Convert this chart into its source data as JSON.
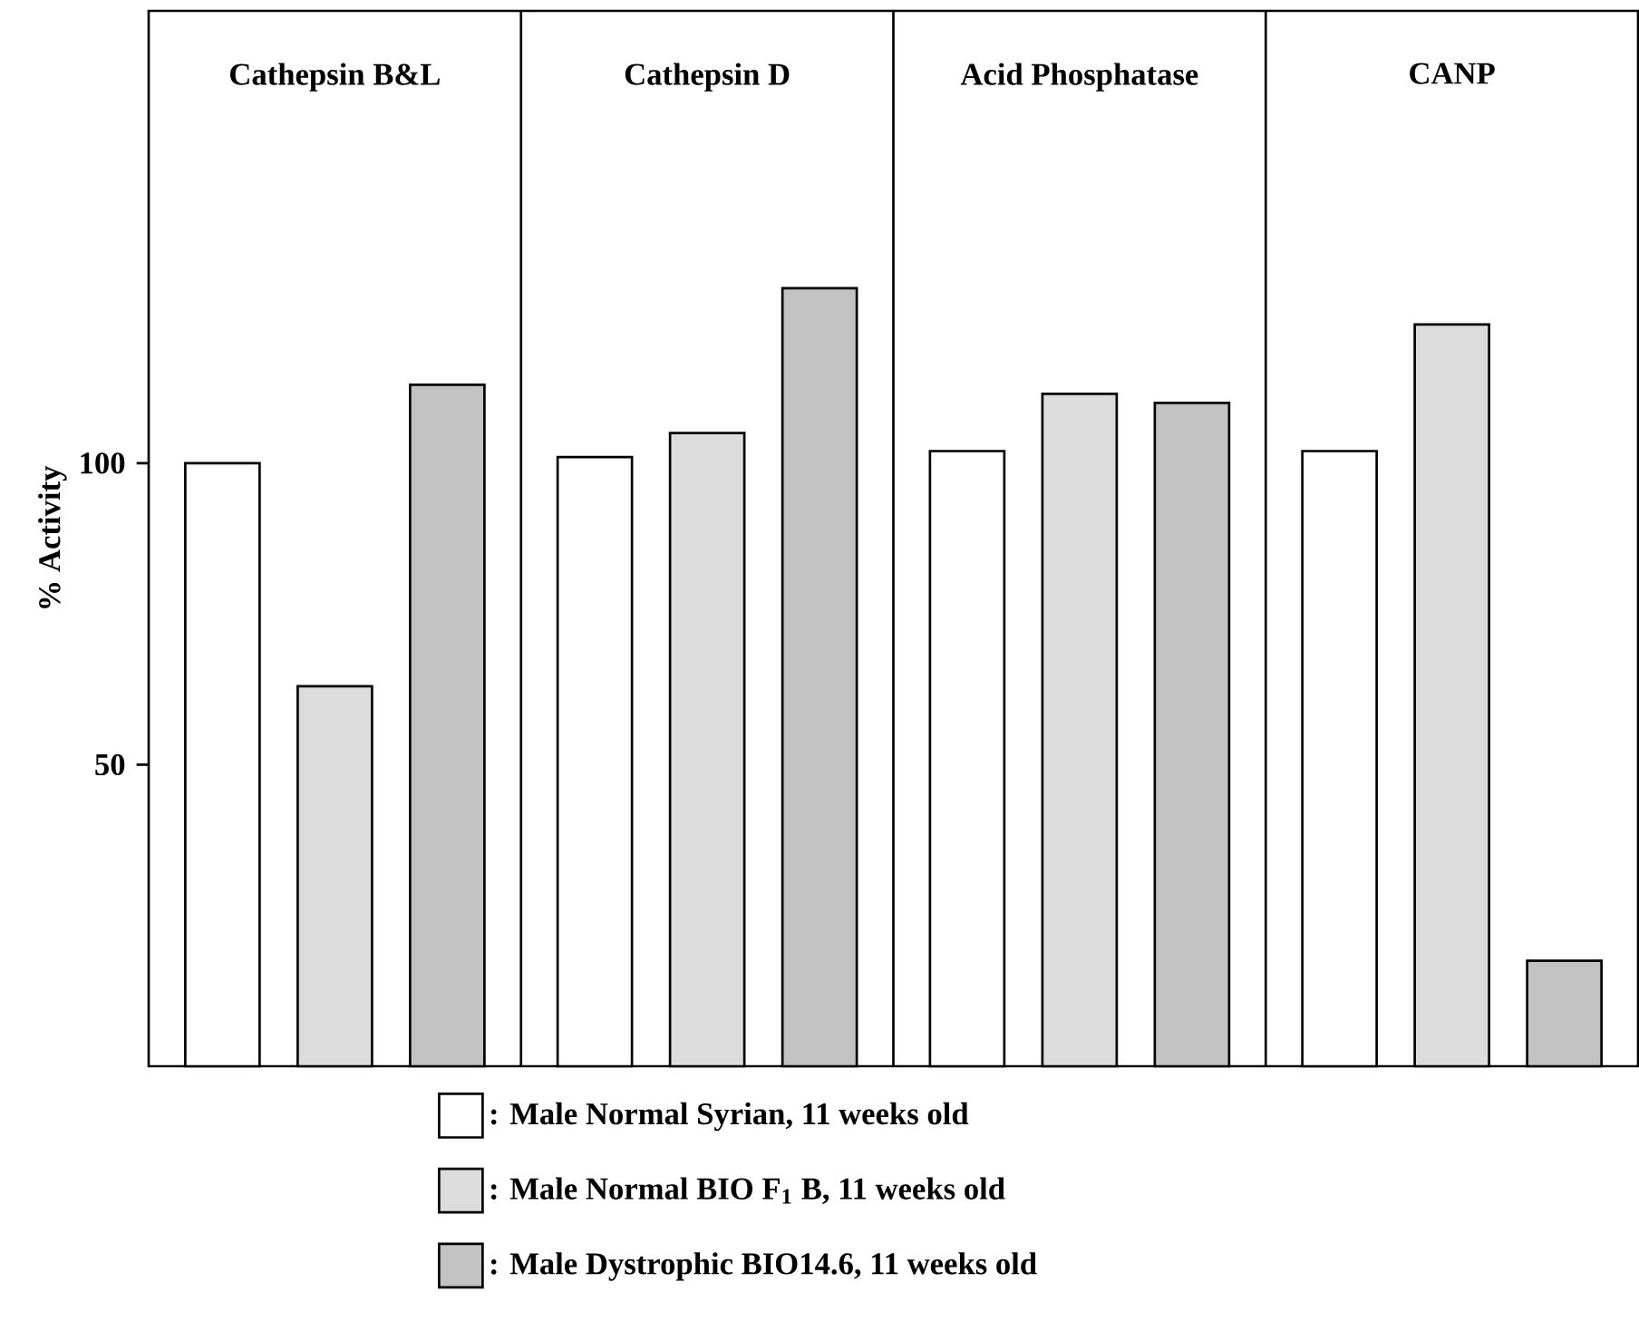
{
  "chart_data": {
    "type": "bar",
    "ylabel": "% Activity",
    "categories": [
      "Cathepsin B&L",
      "Cathepsin D",
      "Acid Phosphatase",
      "CANP"
    ],
    "ylim": [
      0,
      175
    ],
    "yticks": [
      50,
      100
    ],
    "legend": "bottom",
    "grid": false,
    "series": [
      {
        "name": ": Male Normal Syrian, 11 weeks old",
        "color": "#ffffff",
        "values": [
          100,
          101,
          102,
          102
        ]
      },
      {
        "name": ": Male Normal BIO F$_{1}$ B, 11 weeks old",
        "color": "#dcdcdc",
        "values": [
          63,
          105,
          111.5,
          123
        ]
      },
      {
        "name": ": Male Dystrophic BIO14.6, 11 weeks old",
        "color": "#c2c2c2",
        "values": [
          113,
          129,
          110,
          17.5
        ]
      }
    ]
  }
}
